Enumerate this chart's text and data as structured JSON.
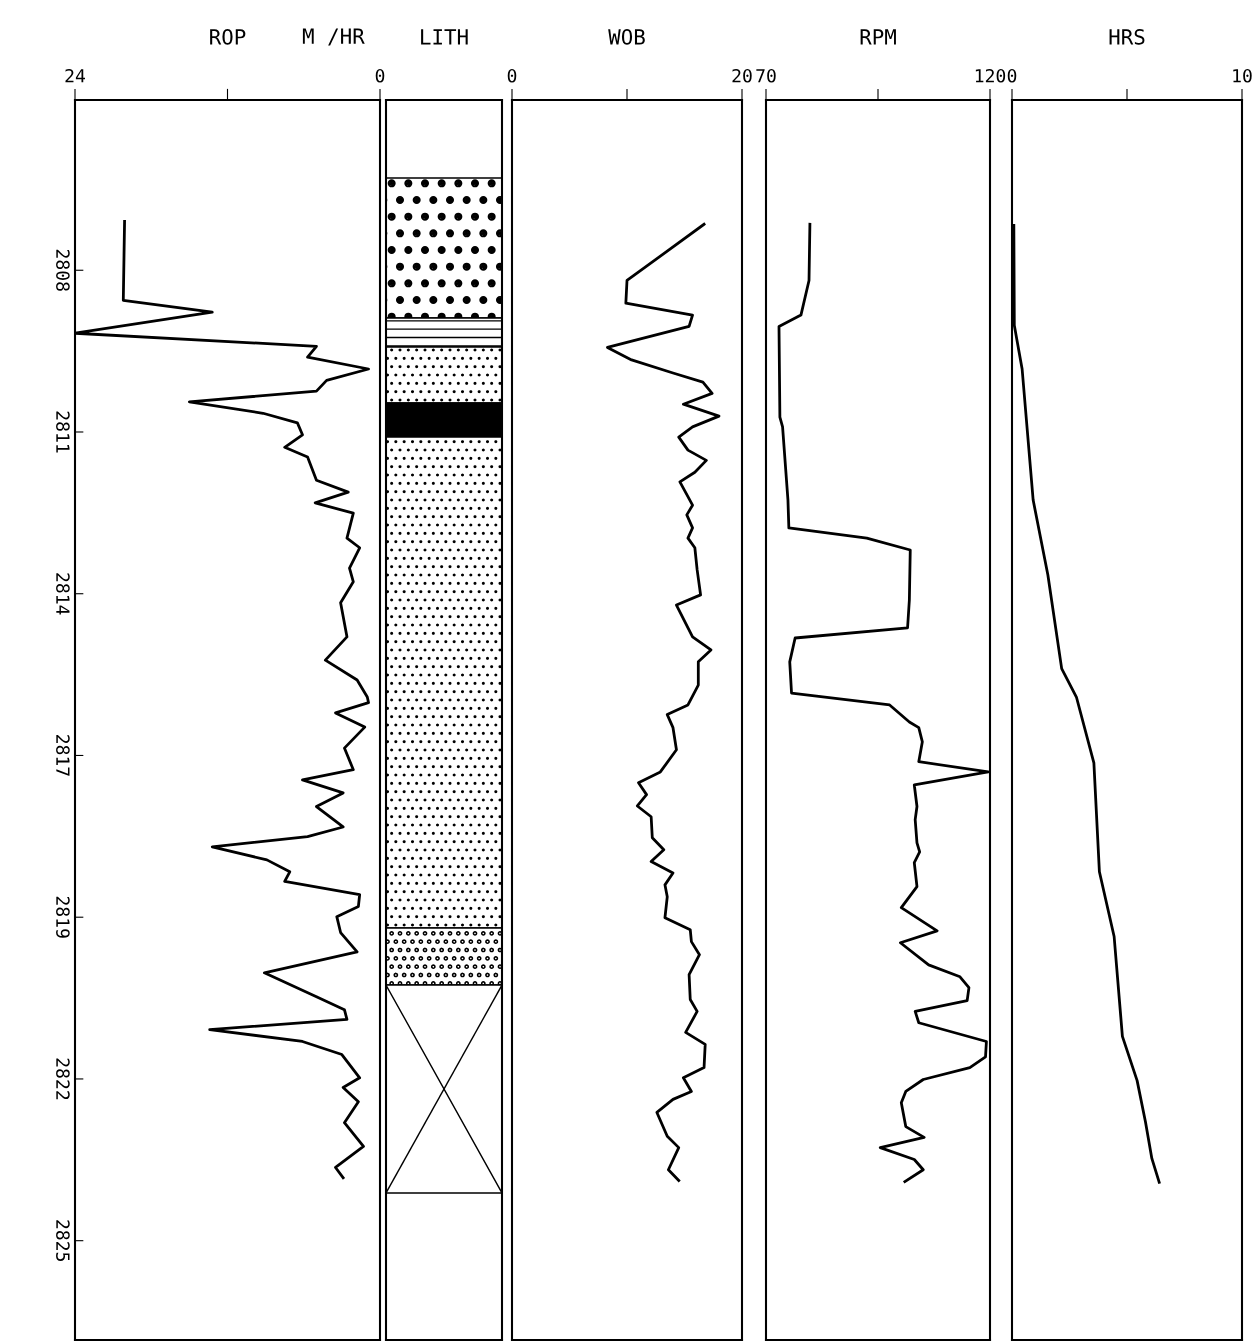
{
  "chart_data": [
    {
      "type": "line",
      "title": "ROP",
      "xlabel": "M /HR",
      "orientation": "horizontal",
      "xlim": [
        24,
        0
      ],
      "xticks": [
        24,
        {
          "value": 12,
          "label": null
        },
        0
      ],
      "ylim": [
        2826.85,
        2805.0
      ],
      "yticks": [
        2808,
        {
          "value": 2810.85,
          "label": "2811"
        },
        {
          "value": 2813.7,
          "label": "2814"
        },
        {
          "value": 2816.55,
          "label": "2817"
        },
        {
          "value": 2819.4,
          "label": "2819"
        },
        {
          "value": 2822.25,
          "label": "2822"
        },
        {
          "value": 2825.1,
          "label": "2825"
        }
      ],
      "grid": false,
      "marker": "none",
      "line_style": "solid",
      "series": [
        {
          "color": "#000000",
          "x": [
            2807.14,
            2808.53,
            2808.74,
            2809.11,
            2809.34,
            2809.53,
            2809.74,
            2809.94,
            2810.13,
            2810.32,
            2810.52,
            2810.69,
            2810.9,
            2811.12,
            2811.29,
            2811.7,
            2811.91,
            2812.1,
            2812.28,
            2812.72,
            2812.89,
            2813.25,
            2813.49,
            2813.86,
            2814.46,
            2814.87,
            2815.22,
            2815.52,
            2815.62,
            2815.8,
            2816.05,
            2816.42,
            2816.8,
            2816.98,
            2817.21,
            2817.45,
            2817.81,
            2817.98,
            2818.16,
            2818.39,
            2818.6,
            2818.77,
            2819.0,
            2819.21,
            2819.39,
            2819.67,
            2820.01,
            2820.38,
            2820.8,
            2821.03,
            2821.2,
            2821.38,
            2821.59,
            2821.82,
            2822.23,
            2822.4,
            2822.65,
            2823.02,
            2823.44,
            2823.81,
            2823.99
          ],
          "values": [
            20.1,
            20.2,
            13.2,
            24.0,
            5.0,
            5.7,
            0.9,
            4.2,
            5.0,
            15.0,
            9.2,
            6.5,
            6.1,
            7.5,
            5.7,
            5.0,
            2.5,
            5.1,
            2.1,
            2.6,
            1.6,
            2.4,
            2.1,
            3.1,
            2.6,
            4.3,
            1.8,
            1.0,
            0.9,
            3.5,
            1.2,
            2.8,
            2.1,
            6.1,
            2.9,
            5.0,
            2.9,
            5.7,
            13.2,
            8.9,
            7.1,
            7.5,
            1.6,
            1.7,
            3.4,
            3.1,
            1.8,
            9.1,
            5.0,
            2.8,
            2.6,
            13.4,
            6.1,
            3.0,
            1.6,
            2.9,
            1.7,
            2.8,
            1.3,
            3.5,
            2.9
          ]
        }
      ]
    },
    {
      "type": "other",
      "title": "LITH"
    },
    {
      "type": "line",
      "title": "WOB",
      "orientation": "horizontal",
      "xlim": [
        0,
        20
      ],
      "xticks": [
        0,
        {
          "value": 10,
          "label": null
        },
        20
      ],
      "ylim": [
        2826.85,
        2805.0
      ],
      "tick_labels": "x",
      "grid": false,
      "marker": "none",
      "line_style": "solid",
      "series": [
        {
          "color": "#000000",
          "x": [
            2807.19,
            2808.18,
            2808.58,
            2808.79,
            2808.99,
            2809.36,
            2809.58,
            2809.81,
            2809.97,
            2810.17,
            2810.36,
            2810.57,
            2810.76,
            2810.94,
            2811.17,
            2811.35,
            2811.56,
            2811.73,
            2812.14,
            2812.31,
            2812.54,
            2812.72,
            2812.89,
            2813.28,
            2813.72,
            2813.9,
            2814.46,
            2814.69,
            2814.9,
            2815.31,
            2815.66,
            2815.83,
            2816.06,
            2816.45,
            2816.84,
            2817.03,
            2817.24,
            2817.44,
            2817.63,
            2818.0,
            2818.21,
            2818.42,
            2818.62,
            2818.83,
            2819.04,
            2819.41,
            2819.62,
            2819.83,
            2820.06,
            2820.41,
            2820.85,
            2821.06,
            2821.43,
            2821.64,
            2822.05,
            2822.23,
            2822.47,
            2822.61,
            2822.84,
            2823.26,
            2823.46,
            2823.85,
            2824.04
          ],
          "values": [
            16.7,
            10.0,
            9.9,
            15.7,
            15.4,
            8.3,
            10.4,
            14.0,
            16.6,
            17.4,
            14.9,
            18.0,
            15.7,
            14.5,
            15.3,
            16.9,
            15.9,
            14.6,
            15.7,
            15.2,
            15.7,
            15.3,
            15.9,
            16.1,
            16.4,
            14.3,
            15.7,
            17.3,
            16.2,
            16.2,
            15.3,
            13.5,
            14.0,
            14.3,
            12.9,
            11.0,
            11.7,
            10.9,
            12.1,
            12.2,
            13.2,
            12.1,
            14.0,
            13.3,
            13.5,
            13.3,
            15.5,
            15.6,
            16.3,
            15.4,
            15.5,
            16.1,
            15.1,
            16.8,
            16.7,
            14.9,
            15.6,
            14.0,
            12.6,
            13.5,
            14.5,
            13.6,
            14.5
          ]
        }
      ]
    },
    {
      "type": "line",
      "title": "RPM",
      "orientation": "horizontal",
      "xlim": [
        70,
        120
      ],
      "xticks": [
        70,
        {
          "value": 95,
          "label": null
        },
        120
      ],
      "ylim": [
        2826.85,
        2805.0
      ],
      "tick_labels": "x",
      "grid": false,
      "marker": "none",
      "line_style": "solid",
      "series": [
        {
          "color": "#000000",
          "x": [
            2807.19,
            2808.18,
            2808.79,
            2808.99,
            2810.59,
            2810.76,
            2812.05,
            2812.54,
            2812.72,
            2812.93,
            2813.81,
            2814.3,
            2814.48,
            2814.9,
            2815.45,
            2815.66,
            2815.96,
            2816.06,
            2816.31,
            2816.66,
            2816.84,
            2817.07,
            2817.45,
            2817.68,
            2818.09,
            2818.25,
            2818.44,
            2818.86,
            2819.23,
            2819.64,
            2819.85,
            2820.24,
            2820.45,
            2820.64,
            2820.87,
            2821.06,
            2821.26,
            2821.59,
            2821.86,
            2822.05,
            2822.26,
            2822.47,
            2822.67,
            2823.09,
            2823.28,
            2823.46,
            2823.67,
            2823.85,
            2824.06
          ],
          "values": [
            79.8,
            79.6,
            77.8,
            72.9,
            73.1,
            73.7,
            74.9,
            75.1,
            92.5,
            102.2,
            102.0,
            101.6,
            76.5,
            75.3,
            75.7,
            97.6,
            102.0,
            104.1,
            104.9,
            104.1,
            119.6,
            103.1,
            103.7,
            103.3,
            103.7,
            104.3,
            103.1,
            103.7,
            100.2,
            108.2,
            100.0,
            106.3,
            113.3,
            115.3,
            114.9,
            103.3,
            104.1,
            119.2,
            119.0,
            115.5,
            105.1,
            101.2,
            100.2,
            101.2,
            105.3,
            95.5,
            103.1,
            105.1,
            101.0
          ]
        }
      ]
    },
    {
      "type": "line",
      "title": "HRS",
      "orientation": "horizontal",
      "xlim": [
        0,
        10
      ],
      "xticks": [
        0,
        {
          "value": 5,
          "label": null
        },
        10
      ],
      "ylim": [
        2826.85,
        2805.0
      ],
      "tick_labels": "x",
      "grid": false,
      "marker": "none",
      "line_style": "solid",
      "series": [
        {
          "color": "#000000",
          "x": [
            2807.21,
            2808.97,
            2809.74,
            2812.05,
            2813.37,
            2815.02,
            2815.52,
            2816.68,
            2818.6,
            2819.74,
            2821.5,
            2822.28,
            2823.0,
            2823.65,
            2824.07
          ],
          "values": [
            0.08,
            0.1,
            0.44,
            0.92,
            1.56,
            2.16,
            2.8,
            3.56,
            3.8,
            4.44,
            4.8,
            5.44,
            5.8,
            6.08,
            6.4
          ]
        }
      ]
    }
  ]
}
